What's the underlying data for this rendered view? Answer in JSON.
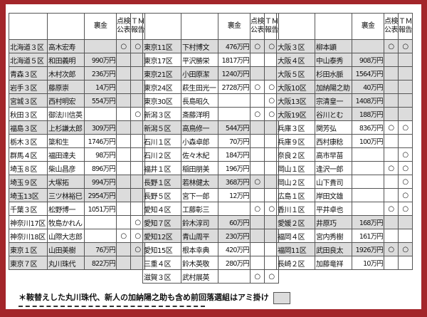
{
  "headers": {
    "district": "",
    "name": "",
    "money": "裏金",
    "inspect": "点検公表",
    "tm": "ＴＭ報告"
  },
  "mark": "○",
  "colors": {
    "shade": "#dcdcdc",
    "frame": "#a3262a"
  },
  "groups": [
    [
      {
        "district": "北海道３区",
        "name": "高木宏寿",
        "money": "",
        "inspect": true,
        "tm": true,
        "shaded": true
      },
      {
        "district": "北海道５区",
        "name": "和田義明",
        "money": "990万円",
        "inspect": false,
        "tm": false,
        "shaded": true
      },
      {
        "district": "青森３区",
        "name": "木村次郎",
        "money": "236万円",
        "inspect": false,
        "tm": false,
        "shaded": true
      },
      {
        "district": "岩手３区",
        "name": "藤原崇",
        "money": "14万円",
        "inspect": false,
        "tm": false,
        "shaded": true
      },
      {
        "district": "宮城３区",
        "name": "西村明宏",
        "money": "554万円",
        "inspect": false,
        "tm": false,
        "shaded": true
      },
      {
        "district": "秋田３区",
        "name": "御法川信英",
        "money": "",
        "inspect": false,
        "tm": true,
        "shaded": false
      },
      {
        "district": "福島３区",
        "name": "上杉謙太郎",
        "money": "309万円",
        "inspect": false,
        "tm": false,
        "shaded": true
      },
      {
        "district": "栃木３区",
        "name": "簗和生",
        "money": "1746万円",
        "inspect": false,
        "tm": false,
        "shaded": false
      },
      {
        "district": "群馬４区",
        "name": "福田達夫",
        "money": "98万円",
        "inspect": false,
        "tm": false,
        "shaded": false
      },
      {
        "district": "埼玉８区",
        "name": "柴山昌彦",
        "money": "896万円",
        "inspect": false,
        "tm": false,
        "shaded": false
      },
      {
        "district": "埼玉９区",
        "name": "大塚拓",
        "money": "994万円",
        "inspect": false,
        "tm": false,
        "shaded": true
      },
      {
        "district": "埼玉13区",
        "name": "三ツ林裕巳",
        "money": "2954万円",
        "inspect": false,
        "tm": false,
        "shaded": true
      },
      {
        "district": "千葉３区",
        "name": "松野博一",
        "money": "1051万円",
        "inspect": false,
        "tm": false,
        "shaded": false
      },
      {
        "district": "神奈川17区",
        "name": "牧島かれん",
        "money": "",
        "inspect": false,
        "tm": true,
        "shaded": false
      },
      {
        "district": "神奈川18区",
        "name": "山際大志郎",
        "money": "",
        "inspect": true,
        "tm": true,
        "shaded": false
      },
      {
        "district": "東京１区",
        "name": "山田美樹",
        "money": "76万円",
        "inspect": false,
        "tm": true,
        "shaded": true
      },
      {
        "district": "東京７区",
        "name": "丸川珠代",
        "money": "822万円",
        "inspect": false,
        "tm": false,
        "shaded": true
      }
    ],
    [
      {
        "district": "東京11区",
        "name": "下村博文",
        "money": "476万円",
        "inspect": true,
        "tm": true,
        "shaded": true
      },
      {
        "district": "東京17区",
        "name": "平沢勝栄",
        "money": "1817万円",
        "inspect": false,
        "tm": false,
        "shaded": false
      },
      {
        "district": "東京21区",
        "name": "小田原潔",
        "money": "1240万円",
        "inspect": false,
        "tm": false,
        "shaded": true
      },
      {
        "district": "東京24区",
        "name": "萩生田光一",
        "money": "2728万円",
        "inspect": true,
        "tm": true,
        "shaded": false
      },
      {
        "district": "東京30区",
        "name": "長島昭久",
        "money": "",
        "inspect": false,
        "tm": true,
        "shaded": false
      },
      {
        "district": "新潟３区",
        "name": "斎藤洋明",
        "money": "",
        "inspect": true,
        "tm": true,
        "shaded": false
      },
      {
        "district": "新潟５区",
        "name": "高鳥修一",
        "money": "544万円",
        "inspect": false,
        "tm": false,
        "shaded": true
      },
      {
        "district": "石川１区",
        "name": "小森卓郎",
        "money": "70万円",
        "inspect": false,
        "tm": false,
        "shaded": false
      },
      {
        "district": "石川２区",
        "name": "佐々木紀",
        "money": "184万円",
        "inspect": false,
        "tm": false,
        "shaded": false
      },
      {
        "district": "福井１区",
        "name": "稲田朋美",
        "money": "196万円",
        "inspect": false,
        "tm": false,
        "shaded": false
      },
      {
        "district": "長野１区",
        "name": "若林健太",
        "money": "368万円",
        "inspect": true,
        "tm": false,
        "shaded": true
      },
      {
        "district": "長野５区",
        "name": "宮下一郎",
        "money": "12万円",
        "inspect": false,
        "tm": false,
        "shaded": false
      },
      {
        "district": "愛知４区",
        "name": "工藤彰三",
        "money": "",
        "inspect": true,
        "tm": true,
        "shaded": false
      },
      {
        "district": "愛知７区",
        "name": "鈴木淳司",
        "money": "60万円",
        "inspect": false,
        "tm": false,
        "shaded": true
      },
      {
        "district": "愛知12区",
        "name": "青山周平",
        "money": "230万円",
        "inspect": false,
        "tm": false,
        "shaded": true
      },
      {
        "district": "愛知15区",
        "name": "根本幸典",
        "money": "420万円",
        "inspect": false,
        "tm": false,
        "shaded": false
      },
      {
        "district": "三重４区",
        "name": "鈴木英敬",
        "money": "280万円",
        "inspect": false,
        "tm": false,
        "shaded": false
      },
      {
        "district": "滋賀３区",
        "name": "武村展英",
        "money": "",
        "inspect": true,
        "tm": true,
        "shaded": false
      }
    ],
    [
      {
        "district": "大阪３区",
        "name": "柳本顕",
        "money": "",
        "inspect": true,
        "tm": true,
        "shaded": true
      },
      {
        "district": "大阪４区",
        "name": "中山泰秀",
        "money": "908万円",
        "inspect": false,
        "tm": false,
        "shaded": true
      },
      {
        "district": "大阪５区",
        "name": "杉田水脈",
        "money": "1564万円",
        "inspect": false,
        "tm": false,
        "shaded": true
      },
      {
        "district": "大阪10区",
        "name": "加納陽之助",
        "money": "40万円",
        "inspect": false,
        "tm": false,
        "shaded": true
      },
      {
        "district": "大阪13区",
        "name": "宗清皇一",
        "money": "1408万円",
        "inspect": false,
        "tm": false,
        "shaded": true
      },
      {
        "district": "大阪19区",
        "name": "谷川とむ",
        "money": "188万円",
        "inspect": false,
        "tm": false,
        "shaded": true
      },
      {
        "district": "兵庫３区",
        "name": "関芳弘",
        "money": "836万円",
        "inspect": true,
        "tm": true,
        "shaded": false
      },
      {
        "district": "兵庫９区",
        "name": "西村康稔",
        "money": "100万円",
        "inspect": false,
        "tm": false,
        "shaded": false
      },
      {
        "district": "奈良２区",
        "name": "高市早苗",
        "money": "",
        "inspect": false,
        "tm": true,
        "shaded": false
      },
      {
        "district": "岡山１区",
        "name": "逢沢一郎",
        "money": "",
        "inspect": true,
        "tm": true,
        "shaded": false
      },
      {
        "district": "岡山２区",
        "name": "山下貴司",
        "money": "",
        "inspect": false,
        "tm": true,
        "shaded": false
      },
      {
        "district": "広島１区",
        "name": "岸田文雄",
        "money": "",
        "inspect": false,
        "tm": true,
        "shaded": false
      },
      {
        "district": "香川１区",
        "name": "平井卓也",
        "money": "",
        "inspect": true,
        "tm": true,
        "shaded": false
      },
      {
        "district": "愛媛２区",
        "name": "井原巧",
        "money": "168万円",
        "inspect": false,
        "tm": false,
        "shaded": true
      },
      {
        "district": "福岡４区",
        "name": "宮内秀樹",
        "money": "161万円",
        "inspect": false,
        "tm": false,
        "shaded": false
      },
      {
        "district": "福岡11区",
        "name": "武田良太",
        "money": "1926万円",
        "inspect": true,
        "tm": true,
        "shaded": true
      },
      {
        "district": "長崎２区",
        "name": "加藤竜祥",
        "money": "10万円",
        "inspect": false,
        "tm": false,
        "shaded": false
      }
    ]
  ],
  "footnote": "＊鞍替えした丸川珠代、新人の加納陽之助も含め前回落選組はアミ掛け"
}
